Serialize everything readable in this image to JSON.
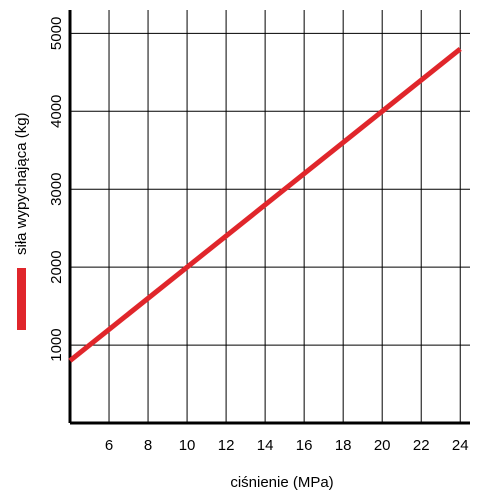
{
  "chart_data": {
    "type": "line",
    "x_label": "ciśnienie (MPa)",
    "x": [
      4,
      24
    ],
    "series": [
      {
        "name": "siła wypychająca (kg)",
        "color": "#e0262b",
        "values": [
          800,
          4800
        ]
      }
    ],
    "xlim": [
      4,
      24.5
    ],
    "xticks": [
      6,
      8,
      10,
      12,
      14,
      16,
      18,
      20,
      22,
      24
    ],
    "ylim": [
      0,
      5300
    ],
    "yticks": [
      1000,
      2000,
      3000,
      4000,
      5000
    ],
    "grid": true
  }
}
